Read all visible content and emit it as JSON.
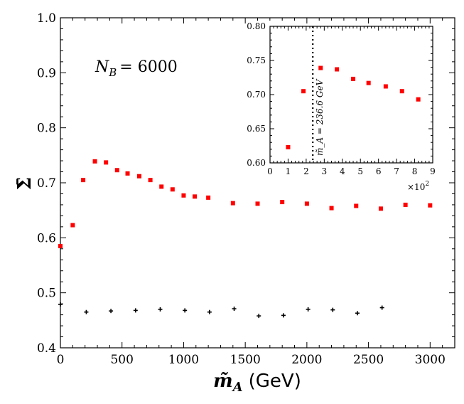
{
  "chart_data": [
    {
      "type": "scatter",
      "xlabel_symbol": "m̃",
      "xlabel_subscript": "A",
      "xlabel_unit": "(GeV)",
      "ylabel": "Σ̄",
      "annotation_lhs": "N",
      "annotation_sub": "B",
      "annotation_rhs": "= 6000",
      "xlim": [
        0,
        3200
      ],
      "ylim": [
        0.4,
        1.0
      ],
      "x_ticks": [
        0,
        500,
        1000,
        1500,
        2000,
        2500,
        3000
      ],
      "y_ticks": [
        0.4,
        0.5,
        0.6,
        0.7,
        0.8,
        0.9,
        1.0
      ],
      "x_tick_labels": [
        "0",
        "500",
        "1000",
        "1500",
        "2000",
        "2500",
        "3000"
      ],
      "y_tick_labels": [
        "0.4",
        "0.5",
        "0.6",
        "0.7",
        "0.8",
        "0.9",
        "1.0"
      ],
      "series": [
        {
          "color": "#ff0000",
          "marker": "square",
          "points": [
            [
              0,
              0.585
            ],
            [
              100,
              0.623
            ],
            [
              185,
              0.705
            ],
            [
              280,
              0.739
            ],
            [
              370,
              0.737
            ],
            [
              460,
              0.723
            ],
            [
              545,
              0.717
            ],
            [
              640,
              0.712
            ],
            [
              730,
              0.705
            ],
            [
              820,
              0.693
            ],
            [
              910,
              0.688
            ],
            [
              1000,
              0.677
            ],
            [
              1090,
              0.675
            ],
            [
              1200,
              0.673
            ],
            [
              1400,
              0.663
            ],
            [
              1600,
              0.662
            ],
            [
              1800,
              0.665
            ],
            [
              2000,
              0.662
            ],
            [
              2200,
              0.654
            ],
            [
              2400,
              0.658
            ],
            [
              2600,
              0.653
            ],
            [
              2800,
              0.66
            ],
            [
              3000,
              0.659
            ]
          ]
        },
        {
          "color": "#000000",
          "marker": "plus",
          "points": [
            [
              0,
              0.479
            ],
            [
              210,
              0.465
            ],
            [
              410,
              0.467
            ],
            [
              610,
              0.468
            ],
            [
              810,
              0.47
            ],
            [
              1010,
              0.468
            ],
            [
              1210,
              0.465
            ],
            [
              1410,
              0.471
            ],
            [
              1610,
              0.458
            ],
            [
              1810,
              0.459
            ],
            [
              2010,
              0.47
            ],
            [
              2210,
              0.469
            ],
            [
              2410,
              0.463
            ],
            [
              2610,
              0.473
            ]
          ]
        }
      ]
    },
    {
      "type": "scatter",
      "xlim": [
        0,
        9
      ],
      "ylim": [
        0.6,
        0.8
      ],
      "x_ticks": [
        0,
        1,
        2,
        3,
        4,
        5,
        6,
        7,
        8,
        9
      ],
      "y_ticks": [
        0.6,
        0.65,
        0.7,
        0.75,
        0.8
      ],
      "x_tick_labels": [
        "0",
        "1",
        "2",
        "3",
        "4",
        "5",
        "6",
        "7",
        "8",
        "9"
      ],
      "y_tick_labels": [
        "0.60",
        "0.65",
        "0.70",
        "0.75",
        "0.80"
      ],
      "x_scale_base": "×10",
      "x_scale_exp": "2",
      "vline": {
        "x": 2.366,
        "style": "dotted",
        "label": "m̃_A = 236.6 GeV"
      },
      "series": [
        {
          "color": "#ff0000",
          "marker": "square",
          "points": [
            [
              1.0,
              0.623
            ],
            [
              1.85,
              0.705
            ],
            [
              2.8,
              0.739
            ],
            [
              3.7,
              0.737
            ],
            [
              4.6,
              0.723
            ],
            [
              5.45,
              0.717
            ],
            [
              6.4,
              0.712
            ],
            [
              7.3,
              0.705
            ],
            [
              8.2,
              0.693
            ]
          ]
        }
      ]
    }
  ]
}
